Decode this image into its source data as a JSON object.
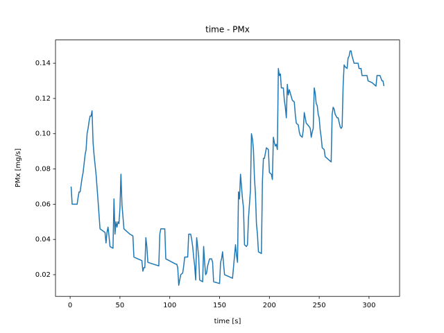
{
  "chart_data": {
    "type": "line",
    "title": "time - PMx",
    "xlabel": "time [s]",
    "ylabel": "PMx [mg/s]",
    "x": [
      1,
      2,
      5,
      7,
      8,
      9,
      10,
      12,
      13,
      14,
      15,
      16,
      17,
      18,
      19,
      20,
      21,
      22,
      23,
      24,
      26,
      28,
      30,
      35,
      36,
      37,
      38,
      39,
      40,
      43,
      44,
      45,
      46,
      47,
      48,
      49,
      50,
      51,
      52,
      53,
      54,
      60,
      63,
      64,
      72,
      73,
      74,
      75,
      76,
      77,
      78,
      89,
      90,
      91,
      95,
      96,
      106,
      107,
      108,
      109,
      110,
      111,
      113,
      114,
      115,
      118,
      119,
      121,
      122,
      123,
      124,
      125,
      126,
      127,
      128,
      129,
      130,
      133,
      134,
      135,
      136,
      137,
      138,
      139,
      140,
      142,
      143,
      144,
      150,
      151,
      152,
      153,
      154,
      155,
      163,
      166,
      167,
      168,
      169,
      170,
      171,
      172,
      173,
      174,
      175,
      177,
      178,
      179,
      180,
      181,
      182,
      183,
      184,
      185,
      186,
      187,
      188,
      189,
      192,
      193,
      194,
      195,
      196,
      197,
      199,
      200,
      202,
      203,
      204,
      205,
      206,
      207,
      208,
      209,
      210,
      211,
      212,
      214,
      215,
      216,
      217,
      218,
      219,
      220,
      222,
      223,
      225,
      226,
      227,
      229,
      230,
      231,
      233,
      234,
      235,
      236,
      237,
      240,
      241,
      242,
      243,
      244,
      245,
      246,
      247,
      248,
      249,
      250,
      251,
      252,
      253,
      255,
      256,
      258,
      262,
      263,
      264,
      265,
      266,
      268,
      269,
      271,
      272,
      273,
      274,
      275,
      276,
      278,
      279,
      280,
      281,
      282,
      283,
      285,
      289,
      290,
      292,
      293,
      298,
      299,
      303,
      305,
      307,
      308,
      311,
      313,
      314,
      315
    ],
    "series": [
      {
        "name": "PMx",
        "color": "#1f77b4",
        "values": [
          0.07,
          0.06,
          0.06,
          0.06,
          0.064,
          0.067,
          0.067,
          0.075,
          0.078,
          0.083,
          0.088,
          0.091,
          0.1,
          0.103,
          0.107,
          0.11,
          0.11,
          0.113,
          0.095,
          0.088,
          0.077,
          0.062,
          0.046,
          0.044,
          0.038,
          0.044,
          0.047,
          0.042,
          0.036,
          0.035,
          0.063,
          0.043,
          0.05,
          0.047,
          0.05,
          0.049,
          0.058,
          0.077,
          0.06,
          0.053,
          0.046,
          0.043,
          0.042,
          0.03,
          0.028,
          0.022,
          0.024,
          0.024,
          0.041,
          0.036,
          0.027,
          0.025,
          0.043,
          0.046,
          0.046,
          0.029,
          0.026,
          0.026,
          0.024,
          0.014,
          0.017,
          0.02,
          0.021,
          0.025,
          0.03,
          0.03,
          0.043,
          0.043,
          0.04,
          0.036,
          0.03,
          0.025,
          0.017,
          0.041,
          0.036,
          0.03,
          0.017,
          0.016,
          0.036,
          0.027,
          0.02,
          0.021,
          0.025,
          0.027,
          0.029,
          0.029,
          0.027,
          0.016,
          0.015,
          0.027,
          0.029,
          0.033,
          0.026,
          0.02,
          0.018,
          0.037,
          0.031,
          0.027,
          0.067,
          0.063,
          0.077,
          0.07,
          0.063,
          0.058,
          0.037,
          0.036,
          0.037,
          0.052,
          0.06,
          0.068,
          0.1,
          0.097,
          0.091,
          0.075,
          0.066,
          0.049,
          0.043,
          0.033,
          0.032,
          0.073,
          0.086,
          0.086,
          0.089,
          0.092,
          0.091,
          0.078,
          0.077,
          0.074,
          0.098,
          0.095,
          0.093,
          0.094,
          0.091,
          0.137,
          0.133,
          0.134,
          0.126,
          0.126,
          0.119,
          0.115,
          0.109,
          0.128,
          0.122,
          0.125,
          0.121,
          0.119,
          0.118,
          0.111,
          0.106,
          0.105,
          0.101,
          0.099,
          0.098,
          0.102,
          0.112,
          0.109,
          0.106,
          0.104,
          0.103,
          0.098,
          0.101,
          0.103,
          0.126,
          0.123,
          0.117,
          0.116,
          0.111,
          0.109,
          0.102,
          0.098,
          0.092,
          0.091,
          0.087,
          0.086,
          0.084,
          0.111,
          0.115,
          0.114,
          0.111,
          0.109,
          0.109,
          0.104,
          0.103,
          0.104,
          0.127,
          0.139,
          0.138,
          0.137,
          0.143,
          0.144,
          0.147,
          0.147,
          0.144,
          0.14,
          0.14,
          0.137,
          0.137,
          0.133,
          0.133,
          0.13,
          0.129,
          0.128,
          0.127,
          0.133,
          0.133,
          0.13,
          0.13,
          0.127
        ]
      }
    ],
    "xlim": [
      -14.7,
      330.7
    ],
    "ylim": [
      0.0077,
      0.1532
    ],
    "xticks": [
      0,
      50,
      100,
      150,
      200,
      250,
      300
    ],
    "yticks": [
      0.02,
      0.04,
      0.06,
      0.08,
      {
        "value": 0.1,
        "label": "0.10"
      },
      0.12,
      0.14
    ]
  }
}
